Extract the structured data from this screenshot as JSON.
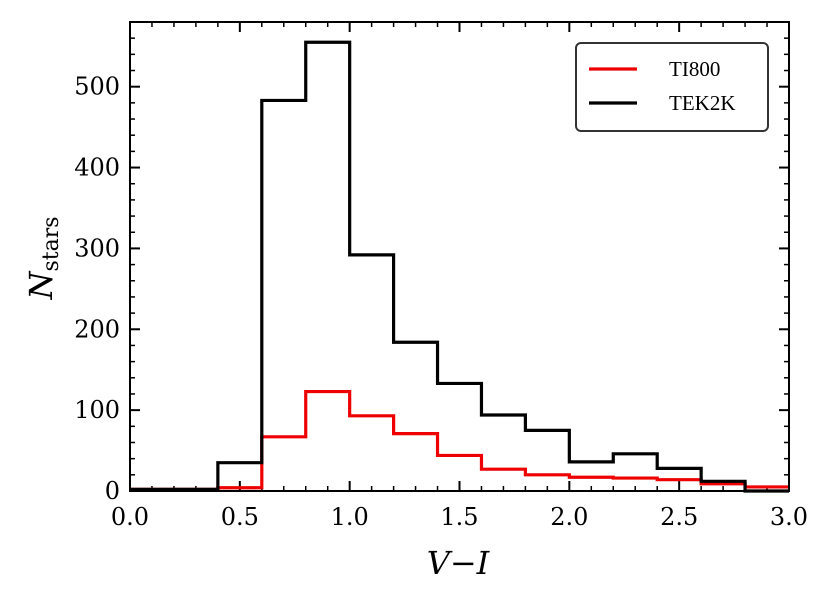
{
  "chart_data": {
    "type": "histogram",
    "title": "",
    "xlabel": "V−I",
    "ylabel": "N",
    "ylabel_subscript": "stars",
    "xlim": [
      0.0,
      3.0
    ],
    "ylim": [
      0,
      580
    ],
    "xticks": [
      0.0,
      0.5,
      1.0,
      1.5,
      2.0,
      2.5,
      3.0
    ],
    "xtick_labels": [
      "0.0",
      "0.5",
      "1.0",
      "1.5",
      "2.0",
      "2.5",
      "3.0"
    ],
    "yticks": [
      0,
      100,
      200,
      300,
      400,
      500
    ],
    "ytick_labels": [
      "0",
      "100",
      "200",
      "300",
      "400",
      "500"
    ],
    "legend_position": "top-right",
    "bin_edges": [
      0.0,
      0.2,
      0.4,
      0.6,
      0.8,
      1.0,
      1.2,
      1.4,
      1.6,
      1.8,
      2.0,
      2.2,
      2.4,
      2.6,
      2.8,
      3.0
    ],
    "series": [
      {
        "name": "TI800",
        "color": "#ee0000",
        "values": [
          2,
          2,
          4,
          67,
          123,
          93,
          71,
          44,
          27,
          20,
          17,
          16,
          14,
          9,
          5
        ]
      },
      {
        "name": "TEK2K",
        "color": "#000000",
        "values": [
          2,
          2,
          35,
          483,
          555,
          292,
          184,
          133,
          94,
          75,
          36,
          46,
          28,
          12,
          0
        ]
      }
    ]
  }
}
